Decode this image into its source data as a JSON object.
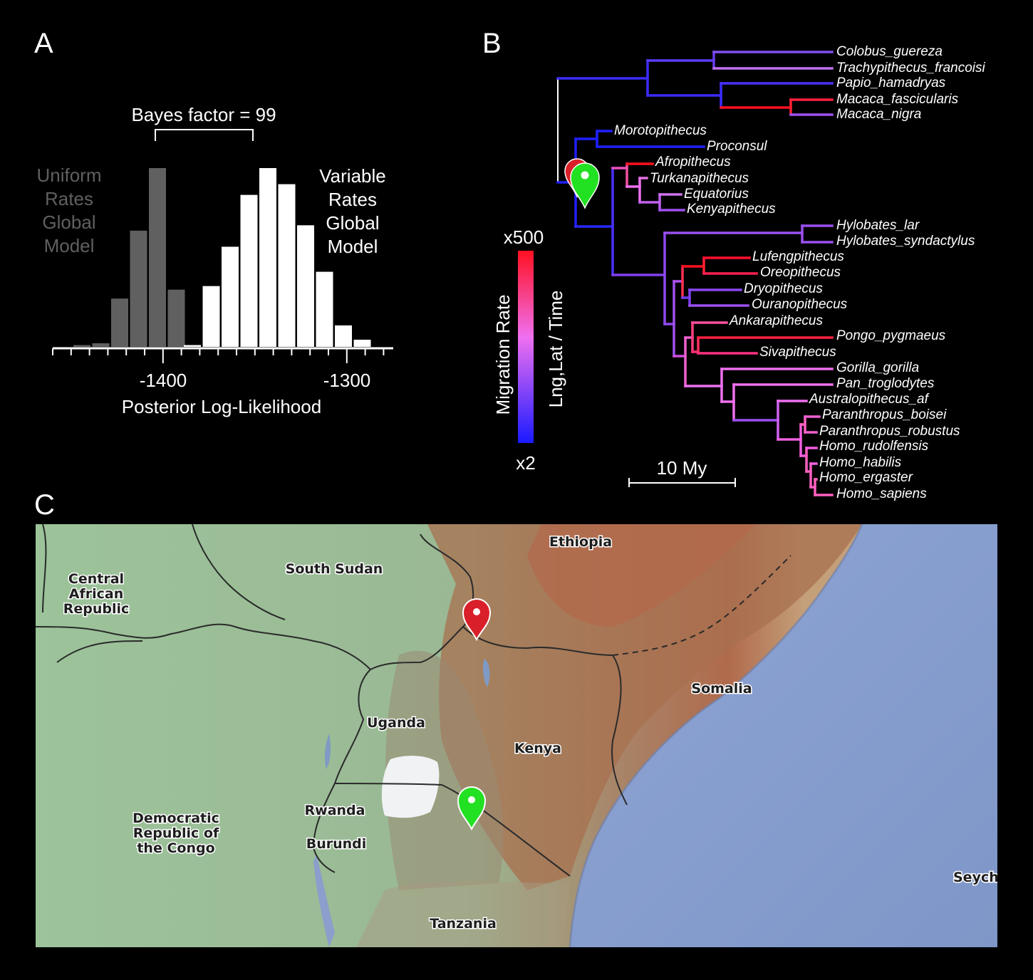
{
  "panels": {
    "a": "A",
    "b": "B",
    "c": "C"
  },
  "panel_a": {
    "bayes_label": "Bayes factor = 99",
    "left_model": [
      "Uniform",
      "Rates",
      "Global",
      "Model"
    ],
    "right_model": [
      "Variable",
      "Rates",
      "Global",
      "Model"
    ],
    "xlabel": "Posterior Log-Likelihood",
    "tick_labels": [
      "-1400",
      "-1300"
    ],
    "uniform_color": "#606060",
    "variable_color": "#ffffff",
    "uniform_bars": [
      0.01,
      0.02,
      0.27,
      0.65,
      1.0,
      0.32
    ],
    "variable_bars": [
      0.01,
      0.34,
      0.56,
      0.85,
      1.0,
      0.91,
      0.68,
      0.42,
      0.12,
      0.04
    ]
  },
  "panel_b": {
    "colorbar_top": "x500",
    "colorbar_bottom": "x2",
    "colorbar_title": "Migration Rate",
    "colorbar_subtitle": "Lng,Lat / Time",
    "scale_label": "10 My",
    "color_low": "#1a1aff",
    "color_mid": "#f060f0",
    "color_high": "#ff1020",
    "taxa": [
      "Colobus_guereza",
      "Trachypithecus_francoisi",
      "Papio_hamadryas",
      "Macaca_fascicularis",
      "Macaca_nigra",
      "Morotopithecus",
      "Proconsul",
      "Afropithecus",
      "Turkanapithecus",
      "Equatorius",
      "Kenyapithecus",
      "Hylobates_lar",
      "Hylobates_syndactylus",
      "Lufengpithecus",
      "Oreopithecus",
      "Dryopithecus",
      "Ouranopithecus",
      "Ankarapithecus",
      "Pongo_pygmaeus",
      "Sivapithecus",
      "Gorilla_gorilla",
      "Pan_troglodytes",
      "Australopithecus_af",
      "Paranthropus_boisei",
      "Paranthropus_robustus",
      "Homo_rudolfensis",
      "Homo_habilis",
      "Homo_ergaster",
      "Homo_sapiens"
    ]
  },
  "panel_c": {
    "map_labels": [
      "Ethiopia",
      "South Sudan",
      "Central",
      "African",
      "Republic",
      "Somalia",
      "Uganda",
      "Kenya",
      "Rwanda",
      "Burundi",
      "Democratic",
      "Republic of",
      "the Congo",
      "Tanzania",
      "Seychel"
    ],
    "marker_red": "#d9202a",
    "marker_green": "#22e022",
    "ocean_color": "#8fa6d2",
    "land_color": "#9fbf98"
  }
}
